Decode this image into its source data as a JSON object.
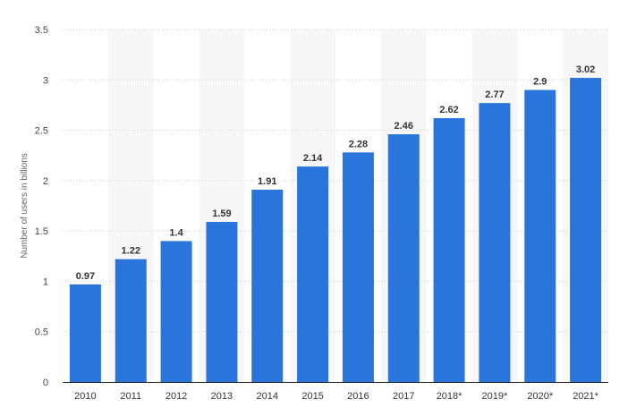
{
  "chart_data": {
    "type": "bar",
    "categories": [
      "2010",
      "2011",
      "2012",
      "2013",
      "2014",
      "2015",
      "2016",
      "2017",
      "2018*",
      "2019*",
      "2020*",
      "2021*"
    ],
    "values": [
      0.97,
      1.22,
      1.4,
      1.59,
      1.91,
      2.14,
      2.28,
      2.46,
      2.62,
      2.77,
      2.9,
      3.02
    ],
    "data_labels": [
      "0.97",
      "1.22",
      "1.4",
      "1.59",
      "1.91",
      "2.14",
      "2.28",
      "2.46",
      "2.62",
      "2.77",
      "2.9",
      "3.02"
    ],
    "title": "",
    "xlabel": "",
    "ylabel": "Number of users in billions",
    "ylim": [
      0,
      3.5
    ],
    "yticks": [
      "0",
      "0.5",
      "1",
      "1.5",
      "2",
      "2.5",
      "3",
      "3.5"
    ],
    "grid": true,
    "legend": "none",
    "bar_color": "#2a75dc",
    "band_color": "#f7f7f7"
  }
}
